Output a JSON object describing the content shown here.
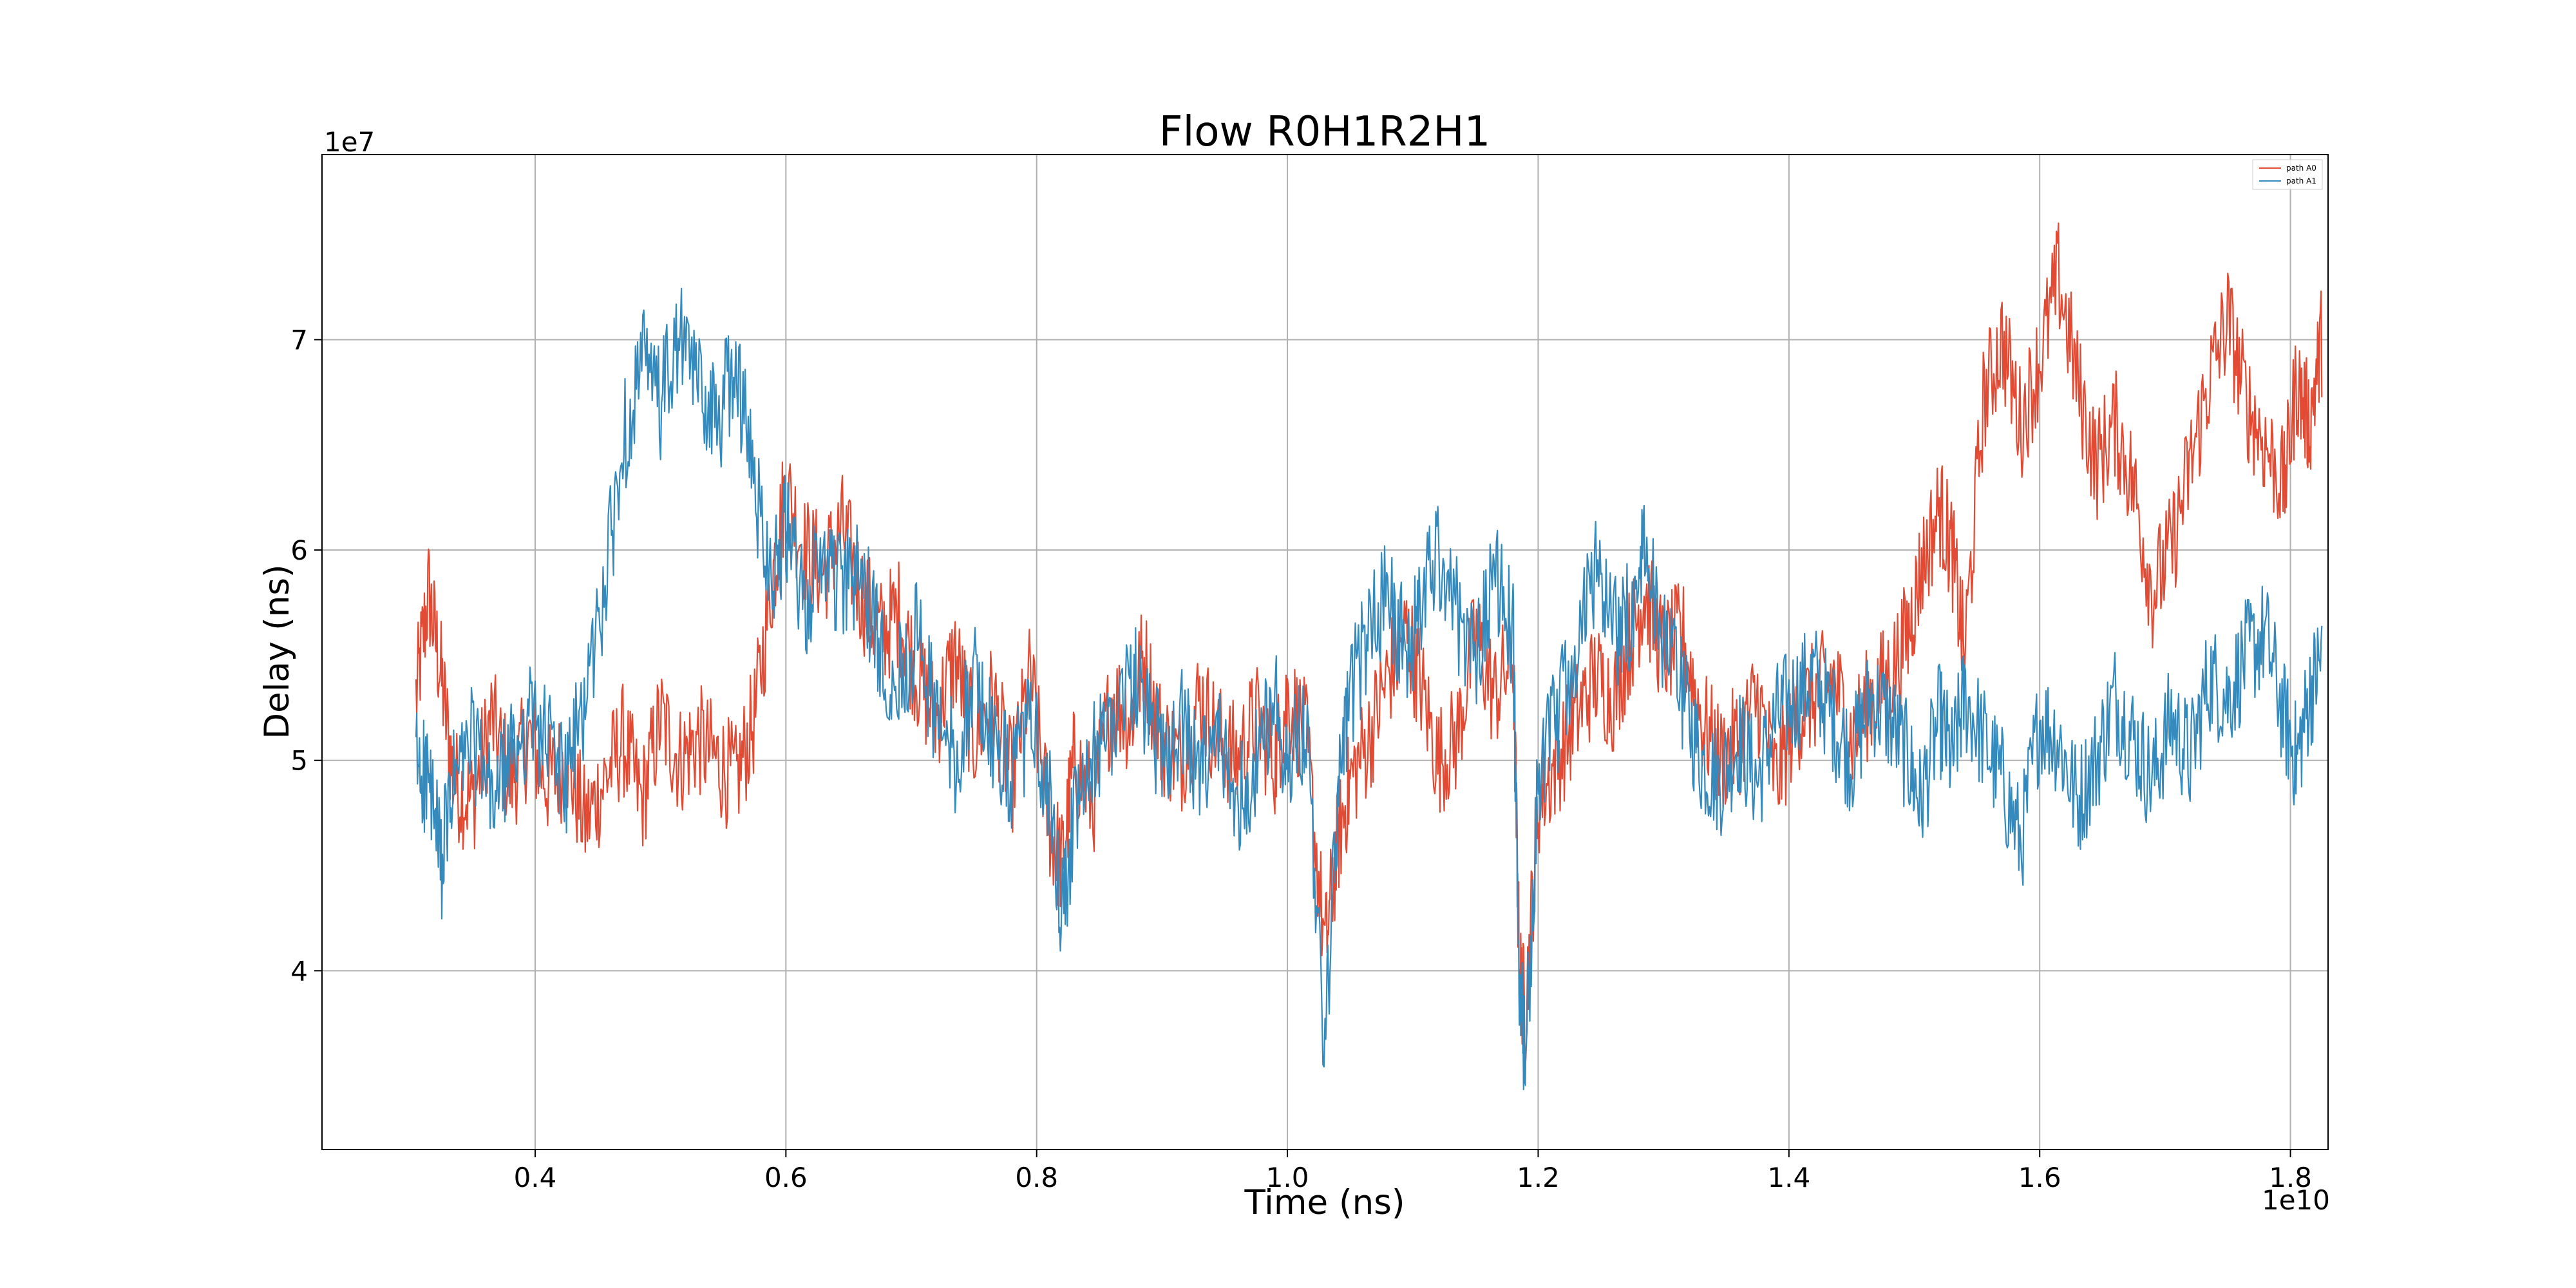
{
  "chart_data": {
    "type": "line",
    "title": "Flow R0H1R2H1",
    "xlabel": "Time (ns)",
    "ylabel": "Delay (ns)",
    "x_offset_label": "1e10",
    "y_offset_label": "1e7",
    "xlim": [
      0.23,
      1.83
    ],
    "ylim": [
      3.15,
      7.88
    ],
    "x_ticks": [
      0.4,
      0.6,
      0.8,
      1.0,
      1.2,
      1.4,
      1.6,
      1.8
    ],
    "x_tick_labels": [
      "0.4",
      "0.6",
      "0.8",
      "1.0",
      "1.2",
      "1.4",
      "1.6",
      "1.8"
    ],
    "y_ticks": [
      4,
      5,
      6,
      7
    ],
    "y_tick_labels": [
      "4",
      "5",
      "6",
      "7"
    ],
    "grid": true,
    "legend_position": "top-right",
    "x_range_data": [
      0.305,
      1.825
    ],
    "series": [
      {
        "name": "path A0",
        "color": "#e24a33",
        "x": [
          0.305,
          0.315,
          0.325,
          0.335,
          0.35,
          0.365,
          0.38,
          0.395,
          0.41,
          0.425,
          0.44,
          0.455,
          0.47,
          0.485,
          0.5,
          0.515,
          0.53,
          0.545,
          0.56,
          0.575,
          0.59,
          0.6,
          0.615,
          0.63,
          0.645,
          0.66,
          0.675,
          0.69,
          0.705,
          0.72,
          0.735,
          0.75,
          0.765,
          0.78,
          0.795,
          0.81,
          0.82,
          0.83,
          0.845,
          0.86,
          0.875,
          0.885,
          0.9,
          0.915,
          0.93,
          0.945,
          0.96,
          0.975,
          0.99,
          1.0,
          1.015,
          1.03,
          1.04,
          1.05,
          1.065,
          1.08,
          1.095,
          1.105,
          1.12,
          1.135,
          1.15,
          1.165,
          1.18,
          1.185,
          1.19,
          1.2,
          1.215,
          1.23,
          1.245,
          1.26,
          1.275,
          1.285,
          1.3,
          1.315,
          1.33,
          1.345,
          1.36,
          1.375,
          1.39,
          1.405,
          1.42,
          1.435,
          1.45,
          1.465,
          1.48,
          1.495,
          1.505,
          1.52,
          1.53,
          1.54,
          1.555,
          1.57,
          1.585,
          1.6,
          1.615,
          1.63,
          1.645,
          1.66,
          1.675,
          1.69,
          1.705,
          1.72,
          1.735,
          1.75,
          1.765,
          1.78,
          1.795,
          1.805,
          1.815,
          1.825
        ],
        "y": [
          5.3,
          5.8,
          5.4,
          4.9,
          4.8,
          5.2,
          4.9,
          5.1,
          4.9,
          5.0,
          4.7,
          4.9,
          5.1,
          4.8,
          5.2,
          5.0,
          5.1,
          5.0,
          4.9,
          5.2,
          5.9,
          6.3,
          6.0,
          5.9,
          6.1,
          5.8,
          5.6,
          5.7,
          5.4,
          5.2,
          5.5,
          5.1,
          5.3,
          4.9,
          5.4,
          4.7,
          4.5,
          5.0,
          4.8,
          5.3,
          5.2,
          5.5,
          5.1,
          5.0,
          5.3,
          5.1,
          5.0,
          5.2,
          5.0,
          5.3,
          5.1,
          4.1,
          4.6,
          4.9,
          5.1,
          5.4,
          5.6,
          5.4,
          5.0,
          5.1,
          5.6,
          5.3,
          5.5,
          4.0,
          3.8,
          4.8,
          5.0,
          5.2,
          5.4,
          5.3,
          5.6,
          5.8,
          5.5,
          5.6,
          5.2,
          5.0,
          5.1,
          5.3,
          4.9,
          5.2,
          5.3,
          5.4,
          5.1,
          5.3,
          5.4,
          5.6,
          5.9,
          6.2,
          6.0,
          5.5,
          6.7,
          7.0,
          6.6,
          6.9,
          7.3,
          6.8,
          6.4,
          6.6,
          6.3,
          5.8,
          6.0,
          6.4,
          6.8,
          7.1,
          6.7,
          6.5,
          6.3,
          6.8,
          6.6,
          7.0
        ]
      },
      {
        "name": "path A1",
        "color": "#348abd",
        "x": [
          0.305,
          0.315,
          0.325,
          0.335,
          0.35,
          0.365,
          0.38,
          0.395,
          0.41,
          0.425,
          0.44,
          0.455,
          0.47,
          0.485,
          0.5,
          0.515,
          0.53,
          0.545,
          0.56,
          0.575,
          0.59,
          0.6,
          0.615,
          0.63,
          0.645,
          0.66,
          0.675,
          0.69,
          0.705,
          0.72,
          0.735,
          0.75,
          0.765,
          0.78,
          0.795,
          0.81,
          0.82,
          0.83,
          0.845,
          0.86,
          0.875,
          0.885,
          0.9,
          0.915,
          0.93,
          0.945,
          0.96,
          0.975,
          0.99,
          1.0,
          1.015,
          1.03,
          1.04,
          1.05,
          1.065,
          1.08,
          1.095,
          1.105,
          1.12,
          1.135,
          1.15,
          1.165,
          1.18,
          1.185,
          1.19,
          1.2,
          1.215,
          1.23,
          1.245,
          1.26,
          1.275,
          1.285,
          1.3,
          1.315,
          1.33,
          1.345,
          1.36,
          1.375,
          1.39,
          1.405,
          1.42,
          1.435,
          1.45,
          1.465,
          1.48,
          1.495,
          1.505,
          1.52,
          1.53,
          1.54,
          1.555,
          1.57,
          1.585,
          1.6,
          1.615,
          1.63,
          1.645,
          1.66,
          1.675,
          1.69,
          1.705,
          1.72,
          1.735,
          1.75,
          1.765,
          1.78,
          1.795,
          1.805,
          1.815,
          1.825
        ],
        "y": [
          5.0,
          4.9,
          4.5,
          4.9,
          5.1,
          4.8,
          5.0,
          5.2,
          5.1,
          4.9,
          5.3,
          5.8,
          6.5,
          6.9,
          6.7,
          7.0,
          6.8,
          6.6,
          6.9,
          6.3,
          5.9,
          6.1,
          5.7,
          6.0,
          5.8,
          5.9,
          5.5,
          5.4,
          5.6,
          5.2,
          5.0,
          5.4,
          5.1,
          4.9,
          5.2,
          4.8,
          4.3,
          4.7,
          5.0,
          5.2,
          5.4,
          5.3,
          5.0,
          5.2,
          4.9,
          5.1,
          4.8,
          5.0,
          5.3,
          5.0,
          5.2,
          3.6,
          4.8,
          5.3,
          5.6,
          5.8,
          5.5,
          5.7,
          6.0,
          5.7,
          5.5,
          5.9,
          5.6,
          3.9,
          3.6,
          4.9,
          5.2,
          5.5,
          5.9,
          5.6,
          5.7,
          6.0,
          5.6,
          5.3,
          5.0,
          4.9,
          5.1,
          4.9,
          5.2,
          5.3,
          5.4,
          5.2,
          5.0,
          5.3,
          5.2,
          5.0,
          4.8,
          5.2,
          5.0,
          5.3,
          5.1,
          4.9,
          4.6,
          5.2,
          5.1,
          4.8,
          5.0,
          5.3,
          5.1,
          4.9,
          5.2,
          5.0,
          5.4,
          5.3,
          5.5,
          5.6,
          5.2,
          5.0,
          5.3,
          5.5
        ]
      }
    ]
  }
}
